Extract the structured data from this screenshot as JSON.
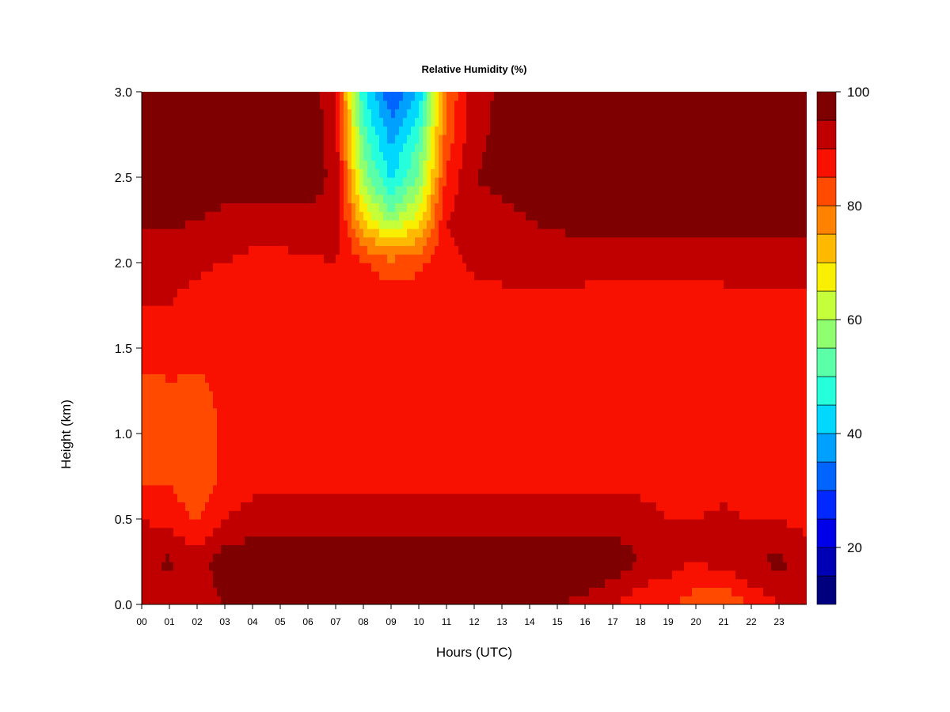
{
  "chart_data": {
    "type": "heatmap",
    "title": "Relative Humidity (%)",
    "xlabel": "Hours (UTC)",
    "ylabel": "Height (km)",
    "x_range": [
      0,
      24
    ],
    "y_range": [
      0,
      3
    ],
    "x_ticks": [
      "00",
      "01",
      "02",
      "03",
      "04",
      "05",
      "06",
      "07",
      "08",
      "09",
      "10",
      "11",
      "12",
      "13",
      "14",
      "15",
      "16",
      "17",
      "18",
      "19",
      "20",
      "21",
      "22",
      "23"
    ],
    "y_ticks": [
      "0.0",
      "0.5",
      "1.0",
      "1.5",
      "2.0",
      "2.5",
      "3.0"
    ],
    "colorbar": {
      "range": [
        10,
        100
      ],
      "step": 5,
      "tick_labels": [
        "20",
        "40",
        "60",
        "80",
        "100"
      ],
      "colors": [
        "#00007F",
        "#0000B4",
        "#0000E8",
        "#0028FF",
        "#0064FF",
        "#00A0FF",
        "#00D8FF",
        "#26FFDC",
        "#5AFFA8",
        "#8FFF70",
        "#C4FF3A",
        "#F8F000",
        "#FFB900",
        "#FF8200",
        "#FF4A00",
        "#F91100",
        "#C00000",
        "#7F0000"
      ]
    },
    "levels_x_hours": [
      0,
      1,
      2,
      3,
      4,
      5,
      6,
      7,
      8,
      9,
      10,
      11,
      12,
      13,
      14,
      15,
      16,
      17,
      18,
      19,
      20,
      21,
      22,
      23,
      24
    ],
    "levels_y_km": [
      0.0,
      0.25,
      0.5,
      0.75,
      1.0,
      1.25,
      1.5,
      1.75,
      2.0,
      2.25,
      2.5,
      2.75,
      3.0
    ],
    "values": [
      [
        90,
        92,
        90,
        96,
        97,
        97,
        96,
        97,
        97,
        97,
        97,
        97,
        96,
        95,
        95,
        95,
        94,
        90,
        86,
        86,
        82,
        80,
        86,
        90,
        92
      ],
      [
        94,
        96,
        93,
        98,
        99,
        99,
        99,
        99,
        99,
        99,
        99,
        99,
        99,
        99,
        99,
        99,
        99,
        99,
        95,
        92,
        90,
        92,
        95,
        96,
        94
      ],
      [
        90,
        88,
        84,
        90,
        92,
        93,
        93,
        93,
        93,
        93,
        93,
        93,
        93,
        93,
        93,
        93,
        93,
        92,
        92,
        90,
        90,
        91,
        90,
        90,
        88
      ],
      [
        84,
        84,
        82,
        86,
        88,
        88,
        87,
        88,
        88,
        88,
        88,
        88,
        88,
        88,
        88,
        88,
        88,
        88,
        88,
        88,
        87,
        88,
        86,
        86,
        86
      ],
      [
        82,
        84,
        82,
        86,
        86,
        87,
        87,
        88,
        88,
        88,
        88,
        88,
        88,
        88,
        88,
        88,
        88,
        88,
        88,
        88,
        87,
        87,
        86,
        86,
        86
      ],
      [
        82,
        84,
        84,
        86,
        86,
        86,
        86,
        87,
        88,
        88,
        88,
        88,
        88,
        88,
        88,
        88,
        88,
        88,
        88,
        88,
        87,
        88,
        87,
        86,
        86
      ],
      [
        88,
        88,
        86,
        86,
        85,
        86,
        87,
        87,
        88,
        88,
        88,
        88,
        88,
        88,
        88,
        88,
        88,
        88,
        88,
        88,
        88,
        88,
        88,
        88,
        88
      ],
      [
        90,
        90,
        88,
        86,
        85,
        86,
        87,
        88,
        88,
        88,
        88,
        88,
        88,
        88,
        88,
        88,
        88,
        88,
        88,
        88,
        88,
        89,
        89,
        89,
        89
      ],
      [
        92,
        92,
        91,
        90,
        88,
        88,
        89,
        90,
        86,
        82,
        84,
        88,
        91,
        92,
        92,
        92,
        92,
        91,
        91,
        91,
        91,
        91,
        91,
        91,
        92
      ],
      [
        96,
        96,
        95,
        94,
        94,
        94,
        94,
        94,
        70,
        58,
        68,
        90,
        93,
        94,
        95,
        96,
        97,
        97,
        97,
        97,
        97,
        97,
        97,
        97,
        97
      ],
      [
        99,
        99,
        98,
        97,
        97,
        97,
        97,
        94,
        58,
        44,
        56,
        86,
        95,
        96,
        97,
        99,
        99,
        99,
        99,
        99,
        99,
        99,
        99,
        99,
        99
      ],
      [
        99,
        99,
        99,
        99,
        99,
        99,
        99,
        92,
        52,
        38,
        50,
        82,
        94,
        96,
        96,
        99,
        99,
        99,
        99,
        99,
        99,
        99,
        99,
        99,
        99
      ],
      [
        99,
        99,
        99,
        99,
        99,
        99,
        99,
        90,
        46,
        30,
        40,
        80,
        93,
        96,
        96,
        99,
        99,
        99,
        99,
        99,
        99,
        99,
        99,
        99,
        99
      ]
    ]
  }
}
